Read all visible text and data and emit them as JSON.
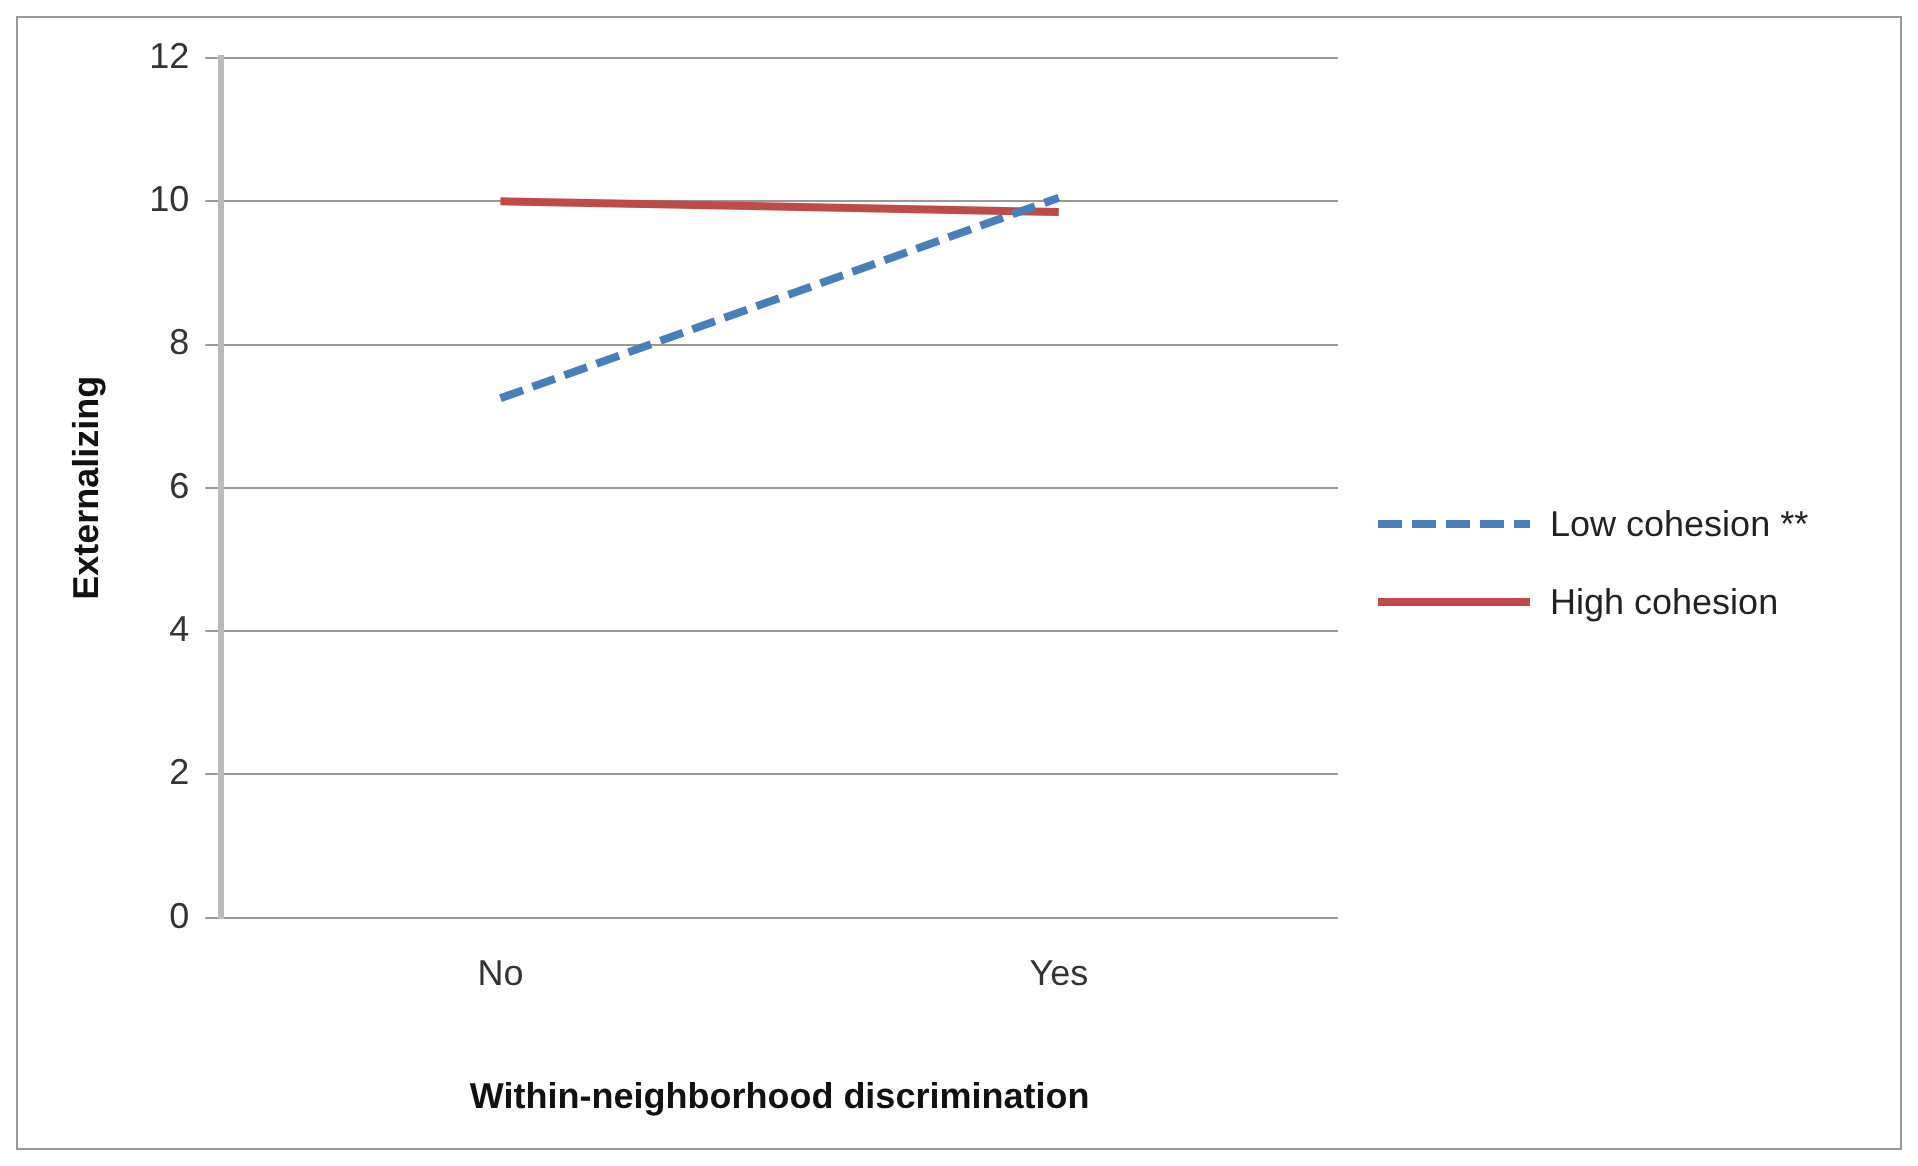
{
  "chart_data": {
    "type": "line",
    "xlabel": "Within-neighborhood discrimination",
    "ylabel": "Externalizing",
    "categories": [
      "No",
      "Yes"
    ],
    "series": [
      {
        "name": "Low cohesion **",
        "color": "#4a7ebb",
        "values": [
          7.25,
          10.05
        ],
        "line_style": "dashed"
      },
      {
        "name": "High cohesion",
        "color": "#be4b48",
        "values": [
          10.0,
          9.85
        ],
        "line_style": "solid"
      }
    ],
    "ylim": [
      0,
      12
    ],
    "yticks": [
      0,
      2,
      4,
      6,
      8,
      10,
      12
    ],
    "grid": "y",
    "legend": "right",
    "marker": "none"
  }
}
